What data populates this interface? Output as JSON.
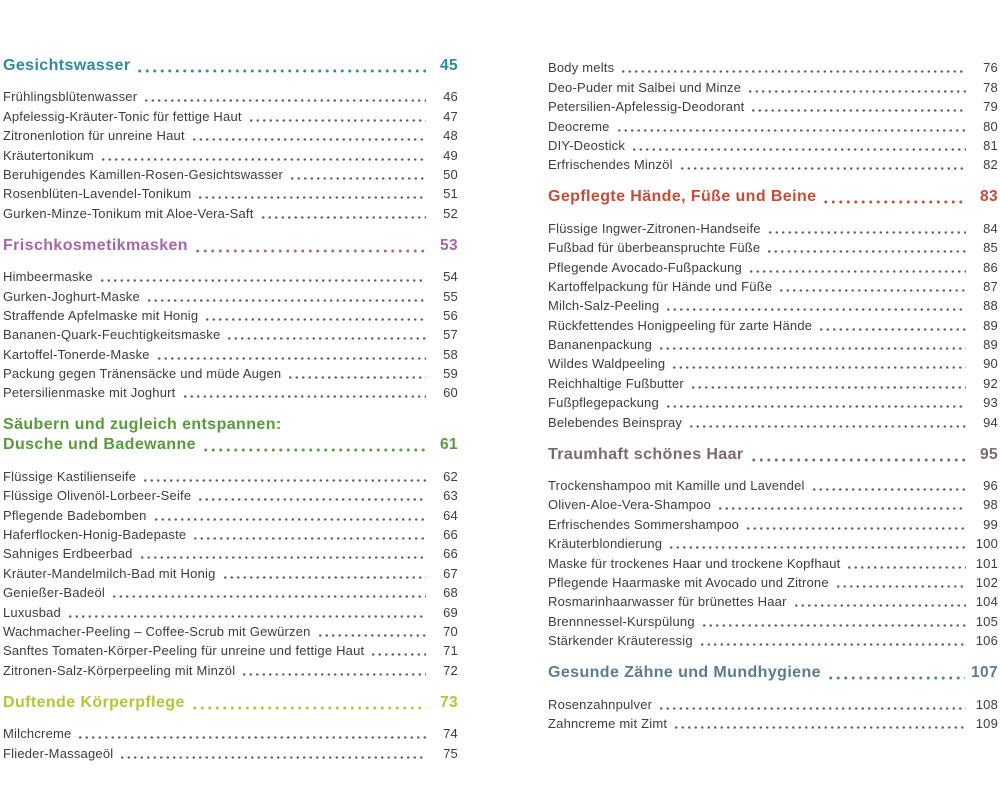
{
  "page": {
    "background": "#ffffff",
    "text_color": "#3d3d3d",
    "dot_color": "#5c5c5c"
  },
  "toc": {
    "columns": [
      {
        "side": "left",
        "sections": [
          {
            "title_lines": [
              "Gesichtswasser"
            ],
            "page": "45",
            "color": "#2b8c9e",
            "items": [
              {
                "label": "Frühlingsblütenwasser",
                "page": "46"
              },
              {
                "label": "Apfelessig-Kräuter-Tonic für fettige Haut",
                "page": "47"
              },
              {
                "label": "Zitronenlotion für unreine Haut",
                "page": "48"
              },
              {
                "label": "Kräutertonikum",
                "page": "49"
              },
              {
                "label": "Beruhigendes Kamillen-Rosen-Gesichtswasser",
                "page": "50"
              },
              {
                "label": "Rosenblüten-Lavendel-Tonikum",
                "page": "51"
              },
              {
                "label": "Gurken-Minze-Tonikum mit Aloe-Vera-Saft",
                "page": "52"
              }
            ]
          },
          {
            "title_lines": [
              "Frischkosmetikmasken"
            ],
            "page": "53",
            "color": "#a765a9",
            "items": [
              {
                "label": "Himbeermaske",
                "page": "54"
              },
              {
                "label": "Gurken-Joghurt-Maske",
                "page": "55"
              },
              {
                "label": "Straffende Apfelmaske mit Honig",
                "page": "56"
              },
              {
                "label": "Bananen-Quark-Feuchtigkeitsmaske",
                "page": "57"
              },
              {
                "label": "Kartoffel-Tonerde-Maske",
                "page": "58"
              },
              {
                "label": "Packung gegen Tränensäcke und müde Augen",
                "page": "59"
              },
              {
                "label": "Petersilienmaske mit Joghurt",
                "page": "60"
              }
            ]
          },
          {
            "title_lines": [
              "Säubern und zugleich entspannen:",
              "Dusche und Badewanne"
            ],
            "page": "61",
            "color": "#579b3c",
            "items": [
              {
                "label": "Flüssige Kastilienseife",
                "page": "62"
              },
              {
                "label": "Flüssige Olivenöl-Lorbeer-Seife",
                "page": "63"
              },
              {
                "label": "Pflegende Badebomben",
                "page": "64"
              },
              {
                "label": "Haferflocken-Honig-Badepaste",
                "page": "66"
              },
              {
                "label": "Sahniges Erdbeerbad",
                "page": "66"
              },
              {
                "label": "Kräuter-Mandelmilch-Bad mit Honig",
                "page": "67"
              },
              {
                "label": "Genießer-Badeöl",
                "page": "68"
              },
              {
                "label": "Luxusbad",
                "page": "69"
              },
              {
                "label": "Wachmacher-Peeling – Coffee-Scrub mit Gewürzen",
                "page": "70"
              },
              {
                "label": "Sanftes Tomaten-Körper-Peeling für unreine und fettige Haut",
                "page": "71"
              },
              {
                "label": "Zitronen-Salz-Körperpeeling mit Minzöl",
                "page": "72"
              }
            ]
          },
          {
            "title_lines": [
              "Duftende Körperpflege"
            ],
            "page": "73",
            "color": "#b2c636",
            "items": [
              {
                "label": "Milchcreme",
                "page": "74"
              },
              {
                "label": "Flieder-Massageöl",
                "page": "75"
              }
            ]
          }
        ]
      },
      {
        "side": "right",
        "sections": [
          {
            "title_lines": [],
            "page": "",
            "color": "#3d3d3d",
            "items": [
              {
                "label": "Body melts",
                "page": "76"
              },
              {
                "label": "Deo-Puder mit Salbei und Minze",
                "page": "78"
              },
              {
                "label": "Petersilien-Apfelessig-Deodorant",
                "page": "79"
              },
              {
                "label": "Deocreme",
                "page": "80"
              },
              {
                "label": "DIY-Deostick",
                "page": "81"
              },
              {
                "label": "Erfrischendes Minzöl",
                "page": "82"
              }
            ]
          },
          {
            "title_lines": [
              "Gepflegte Hände, Füße und Beine"
            ],
            "page": "83",
            "color": "#c84b38",
            "items": [
              {
                "label": "Flüssige Ingwer-Zitronen-Handseife",
                "page": "84"
              },
              {
                "label": "Fußbad für überbeanspruchte Füße",
                "page": "85"
              },
              {
                "label": "Pflegende Avocado-Fußpackung",
                "page": "86"
              },
              {
                "label": "Kartoffelpackung für Hände und Füße",
                "page": "87"
              },
              {
                "label": "Milch-Salz-Peeling",
                "page": "88"
              },
              {
                "label": "Rückfettendes Honigpeeling für zarte Hände",
                "page": "89"
              },
              {
                "label": "Bananenpackung",
                "page": "89"
              },
              {
                "label": "Wildes Waldpeeling",
                "page": "90"
              },
              {
                "label": "Reichhaltige Fußbutter",
                "page": "92"
              },
              {
                "label": "Fußpflegepackung",
                "page": "93"
              },
              {
                "label": "Belebendes Beinspray",
                "page": "94"
              }
            ]
          },
          {
            "title_lines": [
              "Traumhaft schönes Haar"
            ],
            "page": "95",
            "color": "#7d6a66",
            "items": [
              {
                "label": "Trockenshampoo mit Kamille und Lavendel",
                "page": "96"
              },
              {
                "label": "Oliven-Aloe-Vera-Shampoo",
                "page": "98"
              },
              {
                "label": "Erfrischendes Sommershampoo",
                "page": "99"
              },
              {
                "label": "Kräuterblondierung",
                "page": "100"
              },
              {
                "label": "Maske für trockenes Haar und trockene Kopfhaut",
                "page": "101"
              },
              {
                "label": "Pflegende Haarmaske mit Avocado und Zitrone",
                "page": "102"
              },
              {
                "label": "Rosmarinhaarwasser für brünettes Haar",
                "page": "104"
              },
              {
                "label": "Brennnessel-Kurspülung",
                "page": "105"
              },
              {
                "label": "Stärkender Kräuteressig",
                "page": "106"
              }
            ]
          },
          {
            "title_lines": [
              "Gesunde Zähne und Mundhygiene"
            ],
            "page": "107",
            "color": "#597d8a",
            "items": [
              {
                "label": "Rosenzahnpulver",
                "page": "108"
              },
              {
                "label": "Zahncreme mit Zimt",
                "page": "109"
              }
            ]
          }
        ]
      }
    ]
  }
}
